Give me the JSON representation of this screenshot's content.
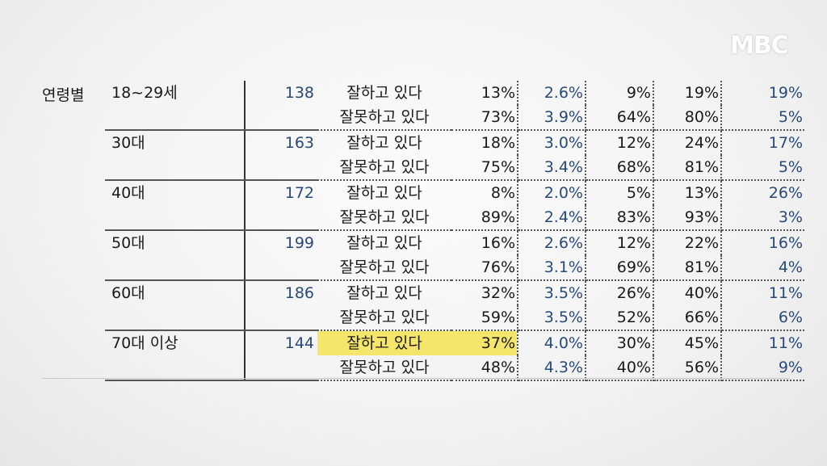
{
  "logo": "MBC",
  "category_label": "연령별",
  "highlight_color": "#f5e56a",
  "rows": [
    {
      "age": "18~29세",
      "n": "138",
      "resp": "잘하고 있다",
      "pct": "13%",
      "moe": "2.6%",
      "lo": "9%",
      "hi": "19%",
      "dk": "19%"
    },
    {
      "age": "",
      "n": "",
      "resp": "잘못하고 있다",
      "pct": "73%",
      "moe": "3.9%",
      "lo": "64%",
      "hi": "80%",
      "dk": "5%"
    },
    {
      "age": "30대",
      "n": "163",
      "resp": "잘하고 있다",
      "pct": "18%",
      "moe": "3.0%",
      "lo": "12%",
      "hi": "24%",
      "dk": "17%"
    },
    {
      "age": "",
      "n": "",
      "resp": "잘못하고 있다",
      "pct": "75%",
      "moe": "3.4%",
      "lo": "68%",
      "hi": "81%",
      "dk": "5%"
    },
    {
      "age": "40대",
      "n": "172",
      "resp": "잘하고 있다",
      "pct": "8%",
      "moe": "2.0%",
      "lo": "5%",
      "hi": "13%",
      "dk": "26%"
    },
    {
      "age": "",
      "n": "",
      "resp": "잘못하고 있다",
      "pct": "89%",
      "moe": "2.4%",
      "lo": "83%",
      "hi": "93%",
      "dk": "3%"
    },
    {
      "age": "50대",
      "n": "199",
      "resp": "잘하고 있다",
      "pct": "16%",
      "moe": "2.6%",
      "lo": "12%",
      "hi": "22%",
      "dk": "16%"
    },
    {
      "age": "",
      "n": "",
      "resp": "잘못하고 있다",
      "pct": "76%",
      "moe": "3.1%",
      "lo": "69%",
      "hi": "81%",
      "dk": "4%"
    },
    {
      "age": "60대",
      "n": "186",
      "resp": "잘하고 있다",
      "pct": "32%",
      "moe": "3.5%",
      "lo": "26%",
      "hi": "40%",
      "dk": "11%"
    },
    {
      "age": "",
      "n": "",
      "resp": "잘못하고 있다",
      "pct": "59%",
      "moe": "3.5%",
      "lo": "52%",
      "hi": "66%",
      "dk": "6%"
    },
    {
      "age": "70대 이상",
      "n": "144",
      "resp": "잘하고 있다",
      "pct": "37%",
      "moe": "4.0%",
      "lo": "30%",
      "hi": "45%",
      "dk": "11%",
      "highlight": true
    },
    {
      "age": "",
      "n": "",
      "resp": "잘못하고 있다",
      "pct": "48%",
      "moe": "4.3%",
      "lo": "40%",
      "hi": "56%",
      "dk": "9%"
    }
  ]
}
